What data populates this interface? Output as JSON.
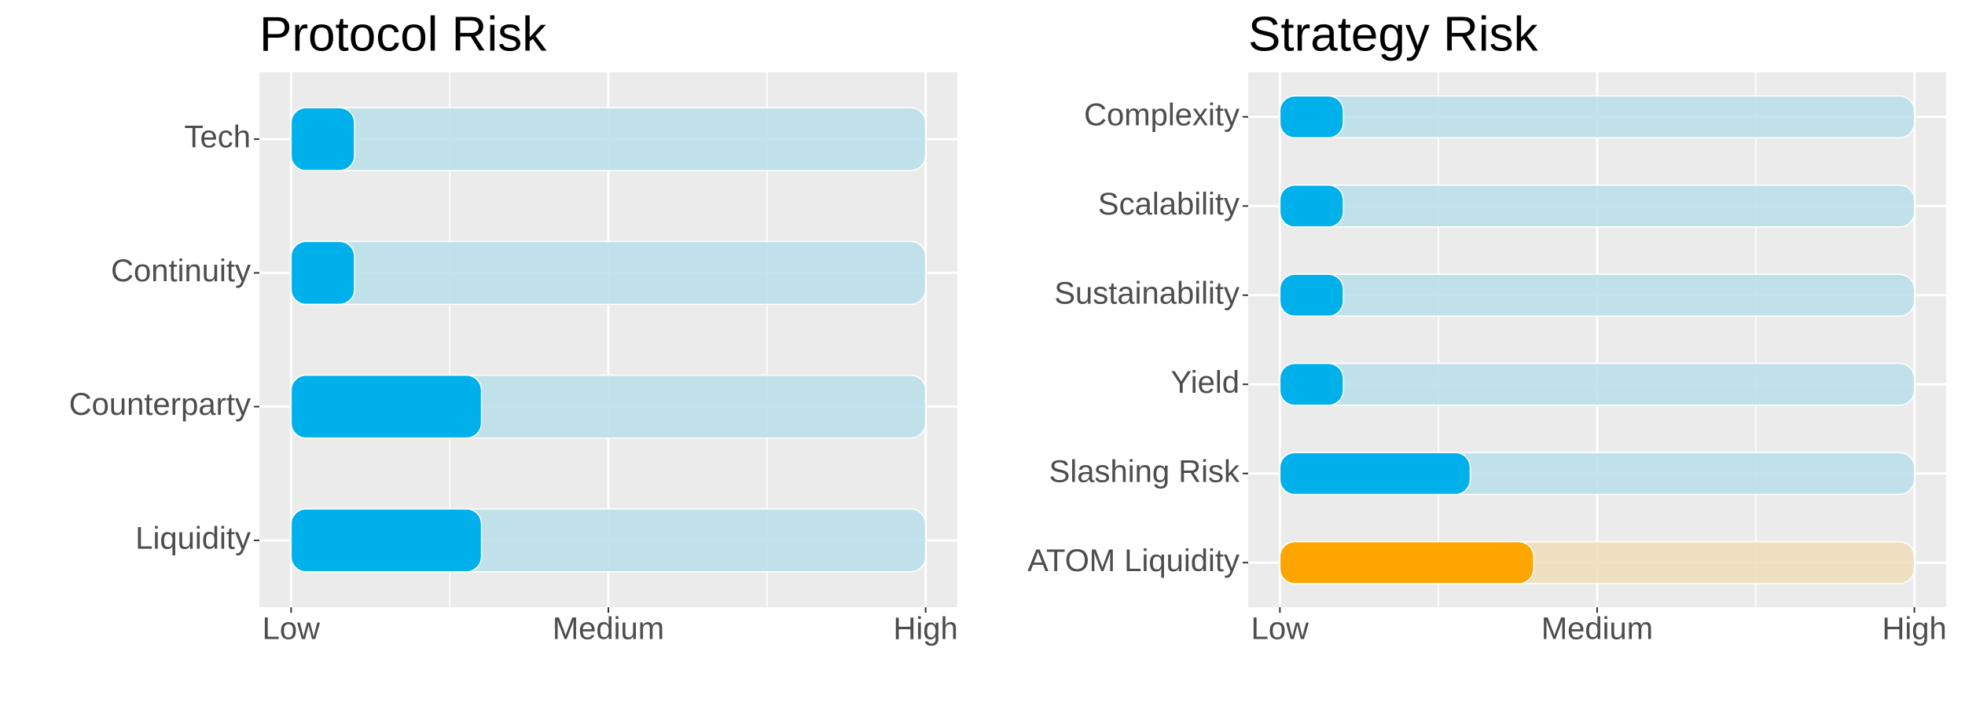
{
  "chart_data": [
    {
      "type": "bar",
      "orientation": "horizontal",
      "title": "Protocol Risk",
      "categories": [
        "Tech",
        "Continuity",
        "Counterparty",
        "Liquidity"
      ],
      "values": [
        1,
        1,
        3,
        3
      ],
      "colors": [
        "#00b0eb",
        "#00b0eb",
        "#00b0eb",
        "#00b0eb"
      ],
      "track_colors": [
        "#bde0ea",
        "#bde0ea",
        "#bde0ea",
        "#bde0ea"
      ],
      "xlim": [
        -0.5,
        10.5
      ],
      "xticks": [
        {
          "value": 0,
          "label": "Low"
        },
        {
          "value": 5,
          "label": "Medium"
        },
        {
          "value": 10,
          "label": "High"
        }
      ],
      "grid": true
    },
    {
      "type": "bar",
      "orientation": "horizontal",
      "title": "Strategy Risk",
      "categories": [
        "Complexity",
        "Scalability",
        "Sustainability",
        "Yield",
        "Slashing Risk",
        "ATOM Liquidity"
      ],
      "values": [
        1,
        1,
        1,
        1,
        3,
        4
      ],
      "colors": [
        "#00b0eb",
        "#00b0eb",
        "#00b0eb",
        "#00b0eb",
        "#00b0eb",
        "#ffa500"
      ],
      "track_colors": [
        "#bde0ea",
        "#bde0ea",
        "#bde0ea",
        "#bde0ea",
        "#bde0ea",
        "#f0dfbc"
      ],
      "xlim": [
        -0.5,
        10.5
      ],
      "xticks": [
        {
          "value": 0,
          "label": "Low"
        },
        {
          "value": 5,
          "label": "Medium"
        },
        {
          "value": 10,
          "label": "High"
        }
      ],
      "grid": true
    }
  ]
}
